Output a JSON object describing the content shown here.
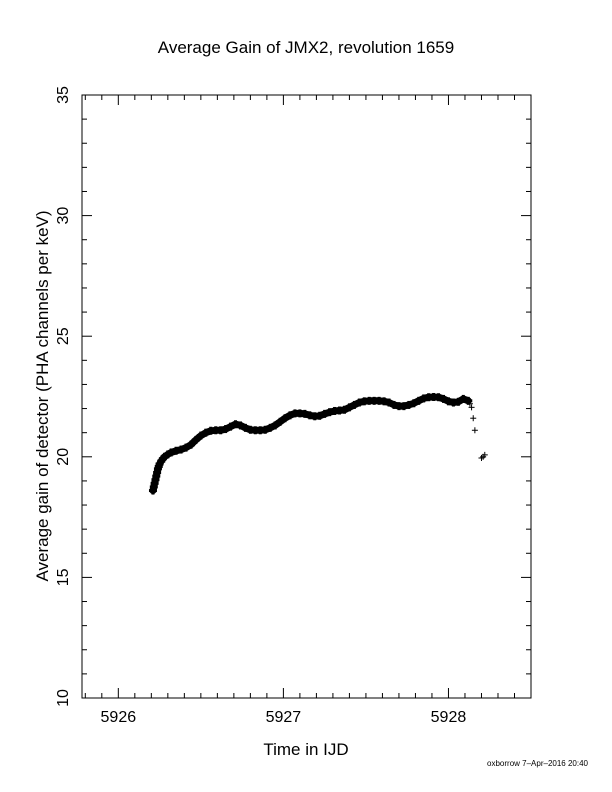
{
  "chart_data": {
    "type": "scatter",
    "title": "Average Gain of JMX2, revolution 1659",
    "xlabel": "Time in IJD",
    "ylabel": "Average gain of detector (PHA channels per keV)",
    "xlim": [
      5925.78,
      5928.5
    ],
    "ylim": [
      10,
      35
    ],
    "xticks": [
      "5926",
      "5927",
      "5928"
    ],
    "yticks": [
      "10",
      "15",
      "20",
      "25",
      "30",
      "35"
    ],
    "marker": "+",
    "grid": false,
    "series": [
      {
        "points": [
          [
            5926.21,
            18.6
          ],
          [
            5926.215,
            18.75
          ],
          [
            5926.22,
            18.9
          ],
          [
            5926.225,
            19.05
          ],
          [
            5926.23,
            19.2
          ],
          [
            5926.235,
            19.35
          ],
          [
            5926.24,
            19.5
          ],
          [
            5926.245,
            19.6
          ],
          [
            5926.25,
            19.7
          ],
          [
            5926.26,
            19.82
          ],
          [
            5926.27,
            19.92
          ],
          [
            5926.28,
            20.0
          ],
          [
            5926.3,
            20.1
          ],
          [
            5926.32,
            20.18
          ],
          [
            5926.35,
            20.25
          ],
          [
            5926.38,
            20.3
          ],
          [
            5926.41,
            20.38
          ],
          [
            5926.44,
            20.5
          ],
          [
            5926.47,
            20.7
          ],
          [
            5926.5,
            20.88
          ],
          [
            5926.53,
            21.0
          ],
          [
            5926.56,
            21.08
          ],
          [
            5926.59,
            21.1
          ],
          [
            5926.62,
            21.1
          ],
          [
            5926.65,
            21.15
          ],
          [
            5926.68,
            21.25
          ],
          [
            5926.71,
            21.35
          ],
          [
            5926.74,
            21.3
          ],
          [
            5926.77,
            21.2
          ],
          [
            5926.8,
            21.12
          ],
          [
            5926.83,
            21.1
          ],
          [
            5926.86,
            21.1
          ],
          [
            5926.89,
            21.12
          ],
          [
            5926.92,
            21.2
          ],
          [
            5926.95,
            21.3
          ],
          [
            5926.98,
            21.45
          ],
          [
            5927.01,
            21.6
          ],
          [
            5927.04,
            21.72
          ],
          [
            5927.07,
            21.8
          ],
          [
            5927.1,
            21.8
          ],
          [
            5927.13,
            21.78
          ],
          [
            5927.16,
            21.72
          ],
          [
            5927.19,
            21.68
          ],
          [
            5927.22,
            21.7
          ],
          [
            5927.25,
            21.78
          ],
          [
            5927.28,
            21.85
          ],
          [
            5927.31,
            21.9
          ],
          [
            5927.34,
            21.92
          ],
          [
            5927.37,
            21.95
          ],
          [
            5927.4,
            22.05
          ],
          [
            5927.43,
            22.15
          ],
          [
            5927.46,
            22.25
          ],
          [
            5927.49,
            22.3
          ],
          [
            5927.52,
            22.32
          ],
          [
            5927.55,
            22.32
          ],
          [
            5927.58,
            22.32
          ],
          [
            5927.61,
            22.3
          ],
          [
            5927.64,
            22.25
          ],
          [
            5927.67,
            22.15
          ],
          [
            5927.7,
            22.1
          ],
          [
            5927.73,
            22.1
          ],
          [
            5927.76,
            22.15
          ],
          [
            5927.79,
            22.22
          ],
          [
            5927.82,
            22.32
          ],
          [
            5927.85,
            22.42
          ],
          [
            5927.88,
            22.47
          ],
          [
            5927.91,
            22.48
          ],
          [
            5927.94,
            22.47
          ],
          [
            5927.97,
            22.4
          ],
          [
            5928.0,
            22.3
          ],
          [
            5928.03,
            22.25
          ],
          [
            5928.06,
            22.28
          ],
          [
            5928.09,
            22.4
          ],
          [
            5928.12,
            22.32
          ],
          [
            5928.13,
            22.2
          ],
          [
            5928.14,
            22.05
          ],
          [
            5928.15,
            21.6
          ],
          [
            5928.16,
            21.1
          ],
          [
            5928.2,
            19.95
          ],
          [
            5928.21,
            20.0
          ],
          [
            5928.22,
            20.08
          ]
        ]
      }
    ]
  },
  "footer": "oxborrow  7–Apr–2016 20:40"
}
